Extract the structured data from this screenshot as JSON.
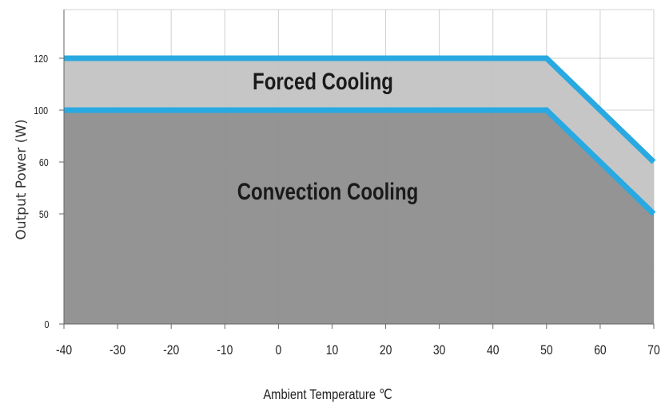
{
  "chart_data": {
    "type": "area",
    "title": "",
    "xlabel": "Ambient Temperature ℃",
    "ylabel": "Output Power (W)",
    "x_ticks": [
      -40,
      -30,
      -20,
      -10,
      0,
      10,
      20,
      30,
      40,
      50,
      60,
      70
    ],
    "y_ticks": [
      0,
      50,
      60,
      100,
      120
    ],
    "xlim": [
      -40,
      70
    ],
    "ylim_labels": [
      "0",
      "50",
      "60",
      "100",
      "120"
    ],
    "grid": true,
    "series": [
      {
        "name": "Forced Cooling",
        "x": [
          -40,
          50,
          70
        ],
        "y": [
          120,
          120,
          60
        ],
        "line_color": "#29a9e1",
        "fill_color": "#c3c3c3"
      },
      {
        "name": "Convection Cooling",
        "x": [
          -40,
          50,
          70
        ],
        "y": [
          100,
          100,
          50
        ],
        "line_color": "#29a9e1",
        "fill_color": "#8e8e8e"
      }
    ]
  }
}
